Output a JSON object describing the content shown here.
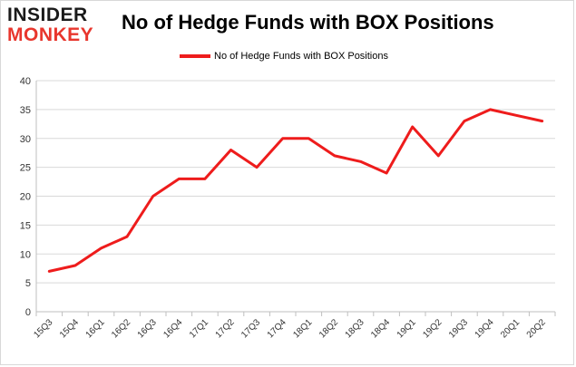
{
  "logo": {
    "line1": "INSIDER",
    "line2": "MONKEY"
  },
  "colors": {
    "series": "#ee1c1c",
    "grid": "#d9d9d9",
    "axis": "#bfbfbf",
    "logo_accent": "#e8362d"
  },
  "chart_data": {
    "type": "line",
    "title": "No of Hedge Funds with BOX Positions",
    "xlabel": "",
    "ylabel": "",
    "categories": [
      "15Q3",
      "15Q4",
      "16Q1",
      "16Q2",
      "16Q3",
      "16Q4",
      "17Q1",
      "17Q2",
      "17Q3",
      "17Q4",
      "18Q1",
      "18Q2",
      "18Q3",
      "18Q4",
      "19Q1",
      "19Q2",
      "19Q3",
      "19Q4",
      "20Q1",
      "20Q2"
    ],
    "series": [
      {
        "name": "No of Hedge Funds with BOX Positions",
        "values": [
          7,
          8,
          11,
          13,
          20,
          23,
          23,
          28,
          25,
          30,
          30,
          27,
          26,
          24,
          32,
          27,
          33,
          35,
          34,
          33
        ]
      }
    ],
    "ylim": [
      0,
      40
    ],
    "yticks": [
      0,
      5,
      10,
      15,
      20,
      25,
      30,
      35,
      40
    ],
    "grid": true,
    "legend": "top-center"
  }
}
